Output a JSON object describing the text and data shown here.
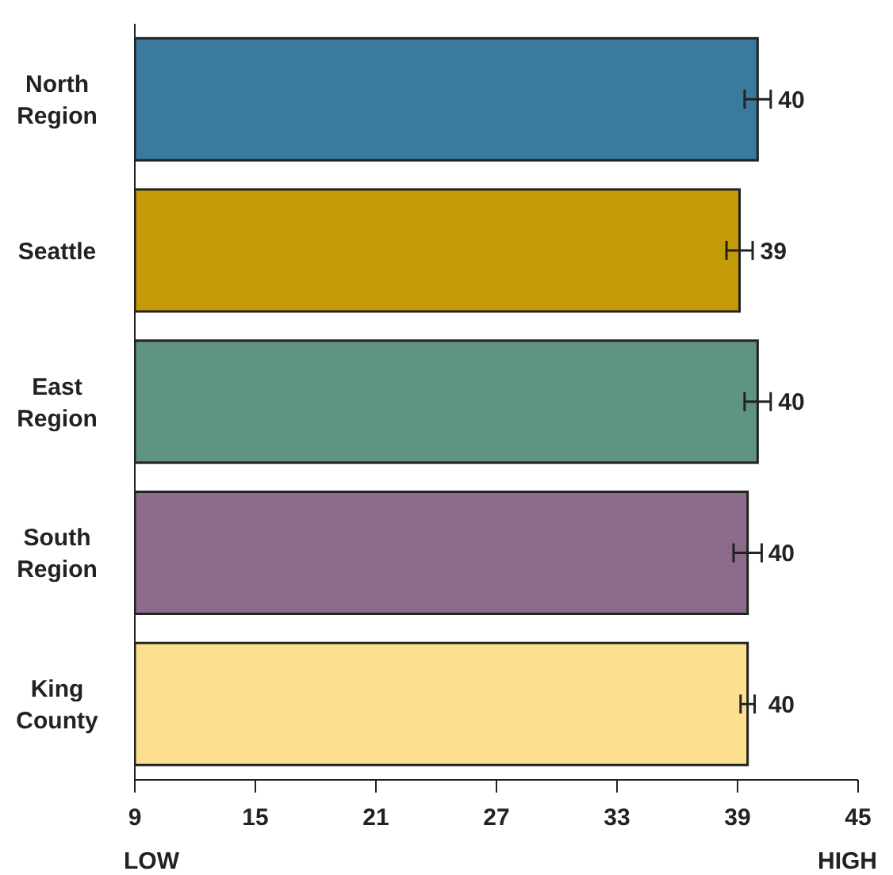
{
  "chart_data": {
    "type": "bar",
    "orientation": "horizontal",
    "categories": [
      "North Region",
      "Seattle",
      "East Region",
      "South Region",
      "King County"
    ],
    "values": [
      40.0,
      39.1,
      40.0,
      39.5,
      39.5
    ],
    "errors": [
      0.65,
      0.65,
      0.65,
      0.7,
      0.35
    ],
    "value_labels": [
      "40",
      "39",
      "40",
      "40",
      "40"
    ],
    "colors": [
      "#3a7a9c",
      "#c49a06",
      "#5f9482",
      "#8d6b8a",
      "#fde08f"
    ],
    "xlim": [
      9,
      45
    ],
    "xticks": [
      9,
      15,
      21,
      27,
      33,
      39,
      45
    ],
    "annotations": [
      "LOW",
      "HIGH"
    ],
    "grid": false,
    "legend": false
  }
}
